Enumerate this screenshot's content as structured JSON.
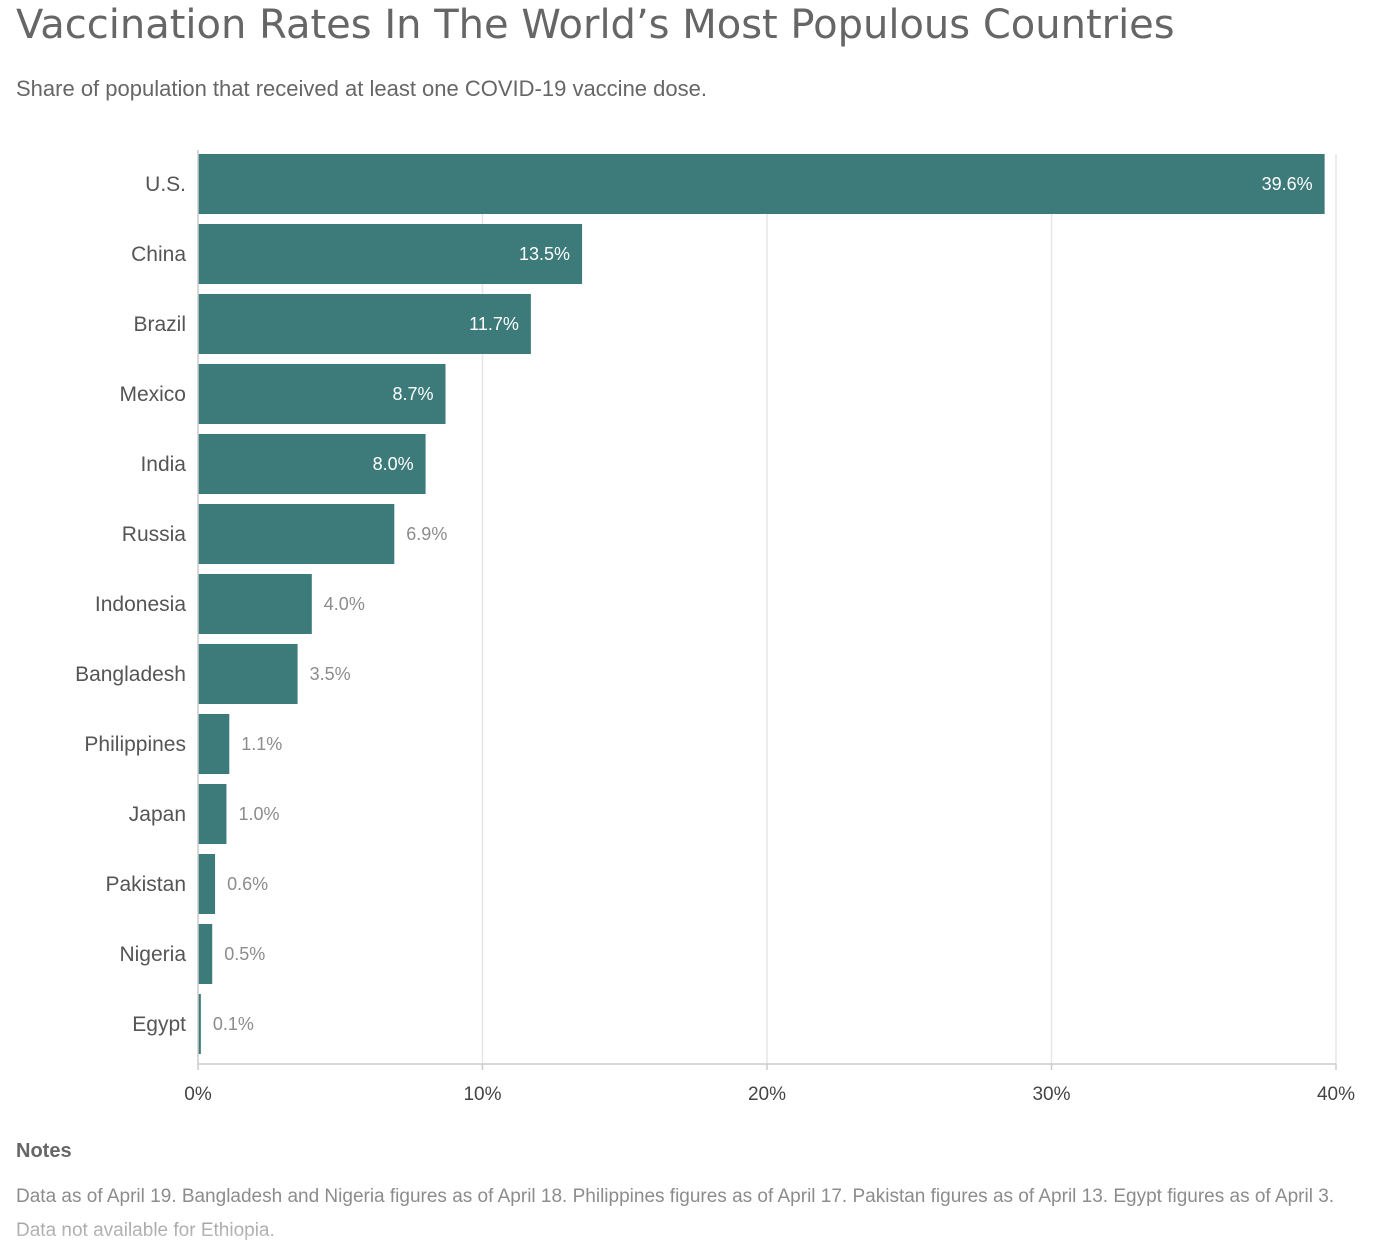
{
  "header": {
    "title": "Vaccination Rates In The World’s Most Populous Countries",
    "subtitle": "Share of population that received at least one COVID-19 vaccine dose."
  },
  "chart_data": {
    "type": "bar",
    "orientation": "horizontal",
    "categories": [
      "U.S.",
      "China",
      "Brazil",
      "Mexico",
      "India",
      "Russia",
      "Indonesia",
      "Bangladesh",
      "Philippines",
      "Japan",
      "Pakistan",
      "Nigeria",
      "Egypt"
    ],
    "values": [
      39.6,
      13.5,
      11.7,
      8.7,
      8.0,
      6.9,
      4.0,
      3.5,
      1.1,
      1.0,
      0.6,
      0.5,
      0.1
    ],
    "data_labels": [
      "39.6%",
      "13.5%",
      "11.7%",
      "8.7%",
      "8.0%",
      "6.9%",
      "4.0%",
      "3.5%",
      "1.1%",
      "1.0%",
      "0.6%",
      "0.5%",
      "0.1%"
    ],
    "xlim": [
      0,
      40
    ],
    "x_ticks": [
      0,
      10,
      20,
      30,
      40
    ],
    "x_tick_labels": [
      "0%",
      "10%",
      "20%",
      "30%",
      "40%"
    ],
    "xlabel": "",
    "ylabel": "",
    "grid": true,
    "legend": "none"
  },
  "colors": {
    "bar": "#3c7b7a",
    "gridline": "#e6e6e6",
    "axis": "#cccccc",
    "category_label": "#555555",
    "value_label_outside": "#8c8c8c",
    "value_label_inside": "#ffffff",
    "tick_label": "#444444"
  },
  "notes": {
    "heading": "Notes",
    "text": "Data as of April 19. Bangladesh and Nigeria figures as of April 18. Philippines figures as of April 17. Pakistan figures as of April 13. Egypt figures as of April 3. Data not available for Ethiopia."
  }
}
